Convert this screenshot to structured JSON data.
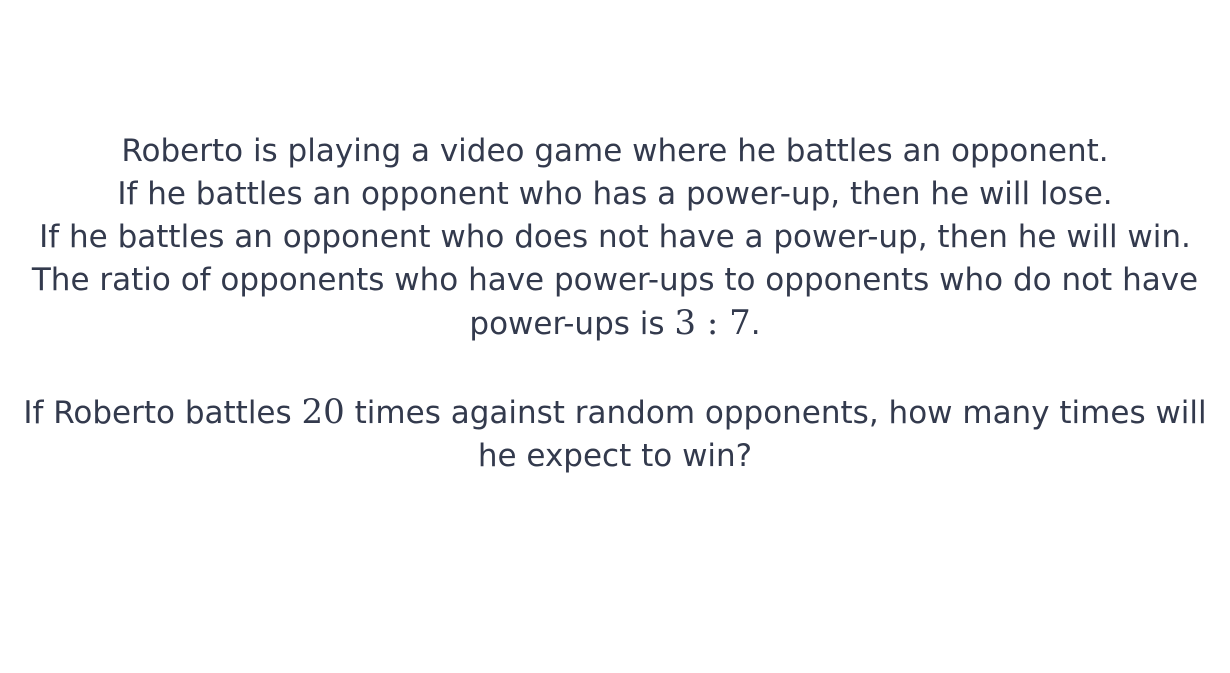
{
  "problem": {
    "line1": "Roberto is playing a video game where he battles an opponent.",
    "line2": "If he battles an opponent who has a power-up, then he will lose.",
    "line3": "If he battles an opponent who does not have a power-up, then he will win.",
    "line4_text": "The ratio of opponents who have power-ups to opponents who do not have power-ups is",
    "ratio": "3 : 7",
    "line4_end": ".",
    "question_start": "If Roberto battles",
    "battles_count": "20",
    "question_end": "times against random opponents, how many times will he expect to win?"
  }
}
